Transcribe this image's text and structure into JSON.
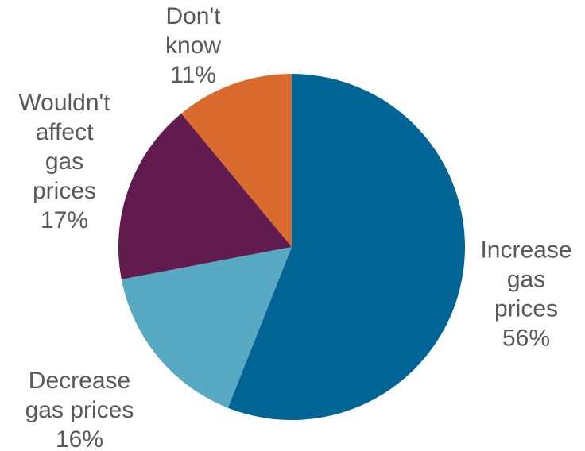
{
  "chart_data": {
    "type": "pie",
    "title": "",
    "start_angle_deg": 0,
    "direction": "clockwise",
    "legend": "none",
    "slices": [
      {
        "category": "Increase gas prices",
        "label_lines": [
          "Increase",
          "gas",
          "prices"
        ],
        "value": 56,
        "value_label": "56%",
        "color": "#006494"
      },
      {
        "category": "Decrease gas prices",
        "label_lines": [
          "Decrease",
          "gas prices"
        ],
        "value": 16,
        "value_label": "16%",
        "color": "#58AAC4"
      },
      {
        "category": "Wouldn't affect gas prices",
        "label_lines": [
          "Wouldn't",
          "affect",
          "gas",
          "prices"
        ],
        "value": 17,
        "value_label": "17%",
        "color": "#621B4F"
      },
      {
        "category": "Don't know",
        "label_lines": [
          "Don't",
          "know"
        ],
        "value": 11,
        "value_label": "11%",
        "color": "#D86B2D"
      }
    ]
  }
}
